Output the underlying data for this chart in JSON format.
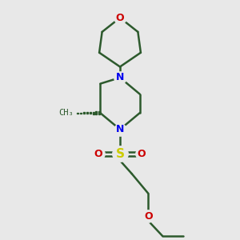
{
  "bg_color": "#e8e8e8",
  "bond_color": "#2d5a2d",
  "N_color": "#0000ee",
  "O_color": "#cc0000",
  "S_color": "#cccc00",
  "line_width": 1.8,
  "fig_size": [
    3.0,
    3.0
  ],
  "dpi": 100,
  "xlim": [
    -1.5,
    1.5
  ],
  "ylim": [
    -3.2,
    1.8
  ]
}
